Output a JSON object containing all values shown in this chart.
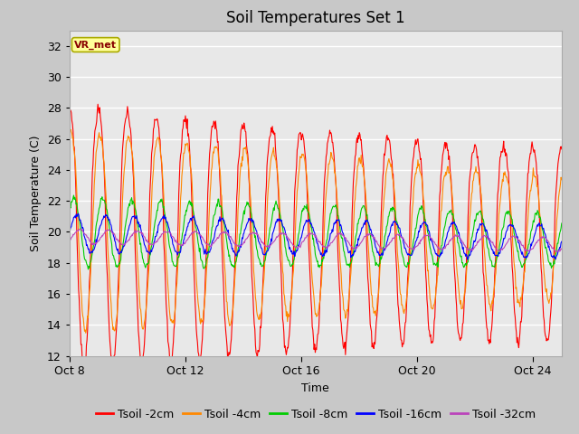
{
  "title": "Soil Temperatures Set 1",
  "xlabel": "Time",
  "ylabel": "Soil Temperature (C)",
  "ylim": [
    12,
    33
  ],
  "yticks": [
    12,
    14,
    16,
    18,
    20,
    22,
    24,
    26,
    28,
    30,
    32
  ],
  "xtick_labels": [
    "Oct 8",
    "Oct 12",
    "Oct 16",
    "Oct 20",
    "Oct 24"
  ],
  "xtick_positions": [
    0,
    4,
    8,
    12,
    16
  ],
  "fig_bg_color": "#c8c8c8",
  "plot_bg_color": "#e8e8e8",
  "annotation_text": "VR_met",
  "annotation_box_color": "#ffff99",
  "annotation_border_color": "#aaaa00",
  "annotation_text_color": "#880000",
  "colors": {
    "Tsoil -2cm": "#ff0000",
    "Tsoil -4cm": "#ff8800",
    "Tsoil -8cm": "#00cc00",
    "Tsoil -16cm": "#0000ff",
    "Tsoil -32cm": "#bb44bb"
  },
  "legend_labels": [
    "Tsoil -2cm",
    "Tsoil -4cm",
    "Tsoil -8cm",
    "Tsoil -16cm",
    "Tsoil -32cm"
  ],
  "title_fontsize": 12,
  "label_fontsize": 9,
  "tick_fontsize": 9,
  "legend_fontsize": 9
}
